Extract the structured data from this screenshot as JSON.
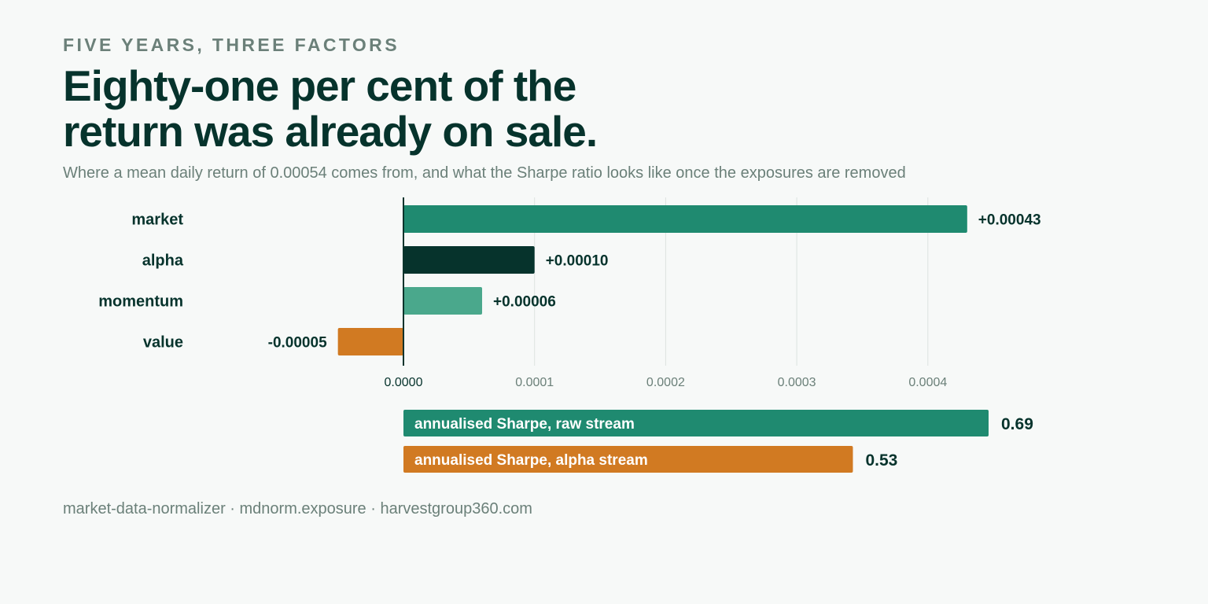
{
  "header": {
    "kicker": "FIVE YEARS, THREE FACTORS",
    "headline": "Eighty-one per cent of the return was already on sale.",
    "subtitle": "Where a mean daily return of 0.00054 comes from, and what the Sharpe ratio looks like once the exposures are removed"
  },
  "chart_data": [
    {
      "type": "bar",
      "orientation": "horizontal",
      "categories": [
        "market",
        "alpha",
        "momentum",
        "value"
      ],
      "values": [
        0.00043,
        0.0001,
        6e-05,
        -5e-05
      ],
      "value_labels": [
        "+0.00043",
        "+0.00010",
        "+0.00006",
        "-0.00005"
      ],
      "colors": [
        "#1f8a70",
        "#06332c",
        "#4aa88c",
        "#d17a22"
      ],
      "xlim": [
        -5e-05,
        0.00045
      ],
      "ticks": [
        0,
        0.0001,
        0.0002,
        0.0003,
        0.0004
      ],
      "tick_labels": [
        "0.0000",
        "0.0001",
        "0.0002",
        "0.0003",
        "0.0004"
      ],
      "grid": true
    },
    {
      "type": "bar",
      "orientation": "horizontal",
      "categories": [
        "annualised Sharpe, raw stream",
        "annualised Sharpe, alpha stream"
      ],
      "values": [
        0.69,
        0.53
      ],
      "value_labels": [
        "0.69",
        "0.53"
      ],
      "colors": [
        "#1f8a70",
        "#d17a22"
      ]
    }
  ],
  "footer": {
    "text": "market-data-normalizer · mdnorm.exposure · harvestgroup360.com"
  }
}
